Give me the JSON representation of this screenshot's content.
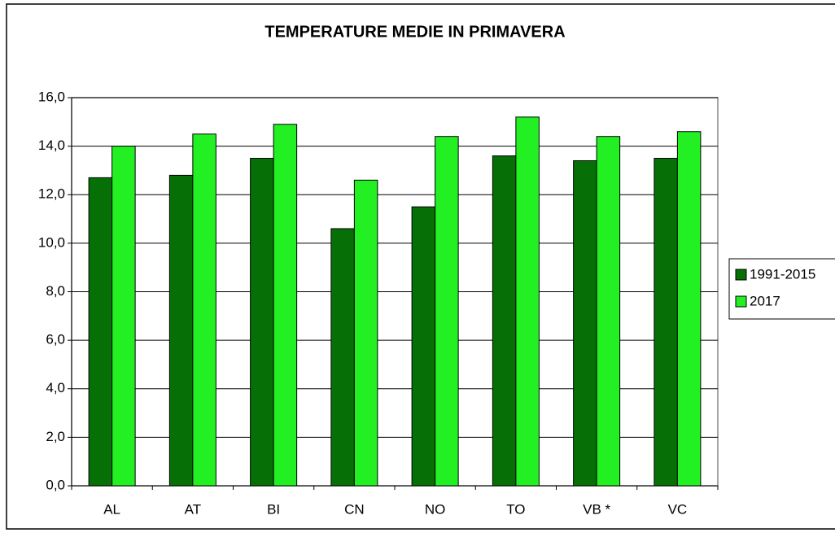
{
  "chart_data": {
    "type": "bar",
    "title": "TEMPERATURE MEDIE IN PRIMAVERA",
    "categories": [
      "AL",
      "AT",
      "BI",
      "CN",
      "NO",
      "TO",
      "VB *",
      "VC"
    ],
    "series": [
      {
        "name": "1991-2015",
        "color": "#067006",
        "values": [
          12.7,
          12.8,
          13.5,
          10.6,
          11.5,
          13.6,
          13.4,
          13.5
        ]
      },
      {
        "name": "2017",
        "color": "#22f022",
        "values": [
          14.0,
          14.5,
          14.9,
          12.6,
          14.4,
          15.2,
          14.4,
          14.6
        ]
      }
    ],
    "ylim": [
      0,
      16
    ],
    "yticks": [
      {
        "value": 0,
        "label": "0,0"
      },
      {
        "value": 2,
        "label": "2,0"
      },
      {
        "value": 4,
        "label": "4,0"
      },
      {
        "value": 6,
        "label": "6,0"
      },
      {
        "value": 8,
        "label": "8,0"
      },
      {
        "value": 10,
        "label": "10,0"
      },
      {
        "value": 12,
        "label": "12,0"
      },
      {
        "value": 14,
        "label": "14,0"
      },
      {
        "value": 16,
        "label": "16,0"
      }
    ],
    "grid": true,
    "legend": "right"
  }
}
